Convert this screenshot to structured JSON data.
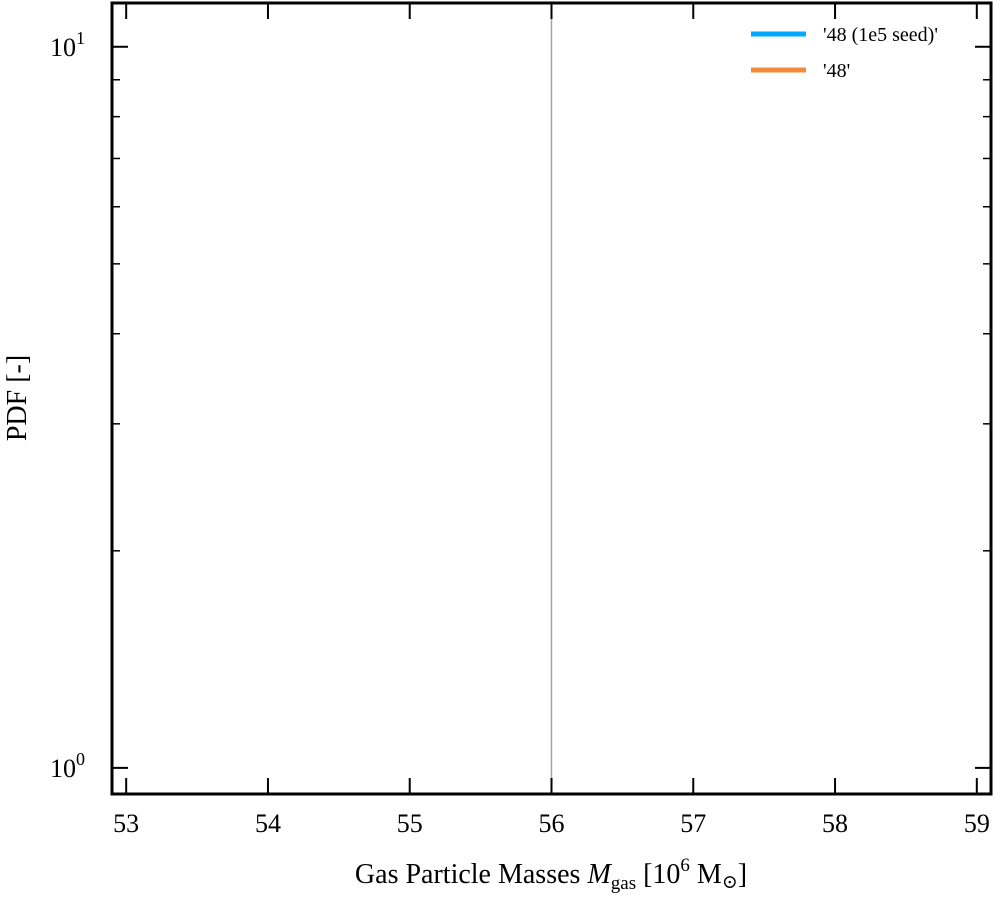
{
  "chart_data": {
    "type": "line",
    "title": "",
    "xlabel": {
      "prefix": "Gas Particle Masses ",
      "symbol": "M",
      "subscript": "gas",
      "unit_open": " [10",
      "unit_exp": "6",
      "unit_rest": " M",
      "unit_sun": "⊙",
      "unit_close": "]"
    },
    "ylabel": "PDF [-]",
    "xlim": [
      52.9,
      59.1
    ],
    "ylim": [
      0.92,
      11.5
    ],
    "yscale": "log",
    "x_ticks": [
      "53",
      "54",
      "55",
      "56",
      "57",
      "58",
      "59"
    ],
    "y_ticks": [
      {
        "value": 1,
        "base": "10",
        "exp": "0"
      },
      {
        "value": 10,
        "base": "10",
        "exp": "1"
      }
    ],
    "grid": false,
    "legend_position": "top-right",
    "series": [
      {
        "name": "'48 (1e5 seed)'",
        "color": "#00aaff",
        "x": [
          56.0,
          56.0
        ],
        "y": [
          0.92,
          11.5
        ]
      },
      {
        "name": "'48'",
        "color": "#f28c3c",
        "x": [
          56.0,
          56.0
        ],
        "y": [
          0.92,
          11.5
        ]
      }
    ]
  }
}
